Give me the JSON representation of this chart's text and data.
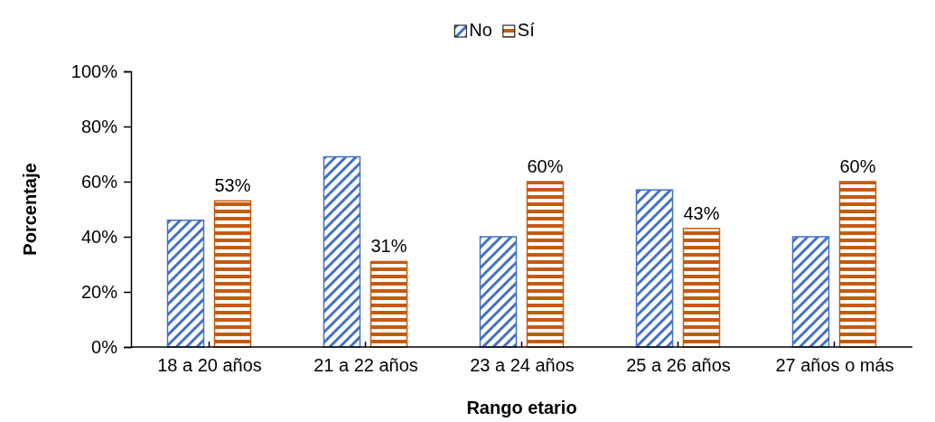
{
  "chart_data": {
    "type": "bar",
    "xlabel": "Rango etario",
    "ylabel": "Porcentaje",
    "categories": [
      "18 a 20 años",
      "21 a 22 años",
      "23 a 24 años",
      "25 a 26 años",
      "27 años o más"
    ],
    "series": [
      {
        "name": "No",
        "color": "#4472c4",
        "values": [
          46,
          69,
          40,
          57,
          40
        ]
      },
      {
        "name": "Sí",
        "color": "#c55a11",
        "values": [
          53,
          31,
          60,
          43,
          60
        ],
        "value_labels": [
          "53%",
          "31%",
          "60%",
          "43%",
          "60%"
        ]
      }
    ],
    "ylim": [
      0,
      100
    ],
    "yticks": [
      {
        "value": 0,
        "label": "0%"
      },
      {
        "value": 20,
        "label": "20%"
      },
      {
        "value": 40,
        "label": "40%"
      },
      {
        "value": 60,
        "label": "60%"
      },
      {
        "value": 80,
        "label": "80%"
      },
      {
        "value": 100,
        "label": "100%"
      }
    ],
    "grid": false,
    "legend": "top"
  }
}
